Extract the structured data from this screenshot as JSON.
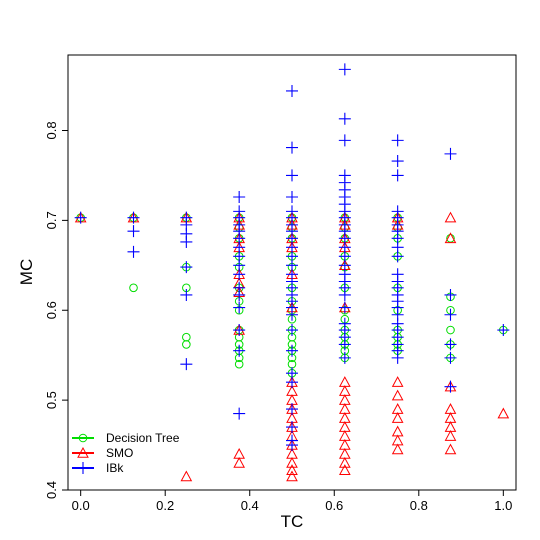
{
  "chart_data": {
    "type": "scatter",
    "title": "",
    "xlabel": "TC",
    "ylabel": "MC",
    "xlim": [
      -0.03,
      1.03
    ],
    "ylim": [
      0.4,
      0.884
    ],
    "xticks": [
      0.0,
      0.2,
      0.4,
      0.6,
      0.8,
      1.0
    ],
    "xtick_labels": [
      "0.0",
      "0.2",
      "0.4",
      "0.6",
      "0.8",
      "1.0"
    ],
    "yticks": [
      0.4,
      0.5,
      0.6,
      0.7,
      0.8
    ],
    "ytick_labels": [
      "0.4",
      "0.5",
      "0.6",
      "0.7",
      "0.8"
    ],
    "grid": false,
    "legend_position": "bottom-left",
    "colors": {
      "Decision Tree": "#00dd00",
      "SMO": "#ff0000",
      "IBk": "#0000ff"
    },
    "series": [
      {
        "name": "Decision Tree",
        "marker": "circle",
        "points": [
          [
            0.0,
            0.703
          ],
          [
            0.125,
            0.703
          ],
          [
            0.125,
            0.625
          ],
          [
            0.25,
            0.703
          ],
          [
            0.25,
            0.648
          ],
          [
            0.25,
            0.625
          ],
          [
            0.25,
            0.57
          ],
          [
            0.25,
            0.562
          ],
          [
            0.375,
            0.703
          ],
          [
            0.375,
            0.692
          ],
          [
            0.375,
            0.68
          ],
          [
            0.375,
            0.66
          ],
          [
            0.375,
            0.648
          ],
          [
            0.375,
            0.625
          ],
          [
            0.375,
            0.61
          ],
          [
            0.375,
            0.6
          ],
          [
            0.375,
            0.578
          ],
          [
            0.375,
            0.57
          ],
          [
            0.375,
            0.562
          ],
          [
            0.375,
            0.555
          ],
          [
            0.375,
            0.547
          ],
          [
            0.375,
            0.54
          ],
          [
            0.5,
            0.703
          ],
          [
            0.5,
            0.692
          ],
          [
            0.5,
            0.68
          ],
          [
            0.5,
            0.66
          ],
          [
            0.5,
            0.648
          ],
          [
            0.5,
            0.625
          ],
          [
            0.5,
            0.61
          ],
          [
            0.5,
            0.6
          ],
          [
            0.5,
            0.59
          ],
          [
            0.5,
            0.578
          ],
          [
            0.5,
            0.57
          ],
          [
            0.5,
            0.562
          ],
          [
            0.5,
            0.555
          ],
          [
            0.5,
            0.547
          ],
          [
            0.5,
            0.54
          ],
          [
            0.5,
            0.53
          ],
          [
            0.625,
            0.703
          ],
          [
            0.625,
            0.692
          ],
          [
            0.625,
            0.68
          ],
          [
            0.625,
            0.66
          ],
          [
            0.625,
            0.648
          ],
          [
            0.625,
            0.625
          ],
          [
            0.625,
            0.6
          ],
          [
            0.625,
            0.59
          ],
          [
            0.625,
            0.578
          ],
          [
            0.625,
            0.57
          ],
          [
            0.625,
            0.562
          ],
          [
            0.625,
            0.555
          ],
          [
            0.625,
            0.547
          ],
          [
            0.75,
            0.703
          ],
          [
            0.75,
            0.692
          ],
          [
            0.75,
            0.68
          ],
          [
            0.75,
            0.66
          ],
          [
            0.75,
            0.625
          ],
          [
            0.75,
            0.6
          ],
          [
            0.75,
            0.578
          ],
          [
            0.75,
            0.57
          ],
          [
            0.75,
            0.562
          ],
          [
            0.75,
            0.555
          ],
          [
            0.875,
            0.68
          ],
          [
            0.875,
            0.615
          ],
          [
            0.875,
            0.6
          ],
          [
            0.875,
            0.578
          ],
          [
            0.875,
            0.562
          ],
          [
            0.875,
            0.547
          ],
          [
            1.0,
            0.578
          ]
        ]
      },
      {
        "name": "SMO",
        "marker": "triangle",
        "points": [
          [
            0.0,
            0.703
          ],
          [
            0.125,
            0.703
          ],
          [
            0.25,
            0.703
          ],
          [
            0.25,
            0.415
          ],
          [
            0.375,
            0.703
          ],
          [
            0.375,
            0.695
          ],
          [
            0.375,
            0.68
          ],
          [
            0.375,
            0.67
          ],
          [
            0.375,
            0.64
          ],
          [
            0.375,
            0.63
          ],
          [
            0.375,
            0.62
          ],
          [
            0.375,
            0.578
          ],
          [
            0.375,
            0.44
          ],
          [
            0.375,
            0.43
          ],
          [
            0.5,
            0.703
          ],
          [
            0.5,
            0.695
          ],
          [
            0.5,
            0.68
          ],
          [
            0.5,
            0.67
          ],
          [
            0.5,
            0.64
          ],
          [
            0.5,
            0.603
          ],
          [
            0.5,
            0.52
          ],
          [
            0.5,
            0.51
          ],
          [
            0.5,
            0.5
          ],
          [
            0.5,
            0.49
          ],
          [
            0.5,
            0.48
          ],
          [
            0.5,
            0.47
          ],
          [
            0.5,
            0.46
          ],
          [
            0.5,
            0.45
          ],
          [
            0.5,
            0.44
          ],
          [
            0.5,
            0.43
          ],
          [
            0.5,
            0.422
          ],
          [
            0.5,
            0.415
          ],
          [
            0.625,
            0.703
          ],
          [
            0.625,
            0.695
          ],
          [
            0.625,
            0.68
          ],
          [
            0.625,
            0.67
          ],
          [
            0.625,
            0.65
          ],
          [
            0.625,
            0.603
          ],
          [
            0.625,
            0.52
          ],
          [
            0.625,
            0.51
          ],
          [
            0.625,
            0.5
          ],
          [
            0.625,
            0.49
          ],
          [
            0.625,
            0.48
          ],
          [
            0.625,
            0.47
          ],
          [
            0.625,
            0.46
          ],
          [
            0.625,
            0.45
          ],
          [
            0.625,
            0.44
          ],
          [
            0.625,
            0.43
          ],
          [
            0.625,
            0.422
          ],
          [
            0.75,
            0.703
          ],
          [
            0.75,
            0.695
          ],
          [
            0.75,
            0.52
          ],
          [
            0.75,
            0.505
          ],
          [
            0.75,
            0.49
          ],
          [
            0.75,
            0.48
          ],
          [
            0.75,
            0.465
          ],
          [
            0.75,
            0.455
          ],
          [
            0.75,
            0.445
          ],
          [
            0.875,
            0.703
          ],
          [
            0.875,
            0.68
          ],
          [
            0.875,
            0.515
          ],
          [
            0.875,
            0.49
          ],
          [
            0.875,
            0.48
          ],
          [
            0.875,
            0.47
          ],
          [
            0.875,
            0.46
          ],
          [
            0.875,
            0.445
          ],
          [
            1.0,
            0.485
          ]
        ]
      },
      {
        "name": "IBk",
        "marker": "plus",
        "points": [
          [
            0.0,
            0.703
          ],
          [
            0.125,
            0.703
          ],
          [
            0.125,
            0.688
          ],
          [
            0.125,
            0.665
          ],
          [
            0.25,
            0.703
          ],
          [
            0.25,
            0.695
          ],
          [
            0.25,
            0.685
          ],
          [
            0.25,
            0.676
          ],
          [
            0.25,
            0.648
          ],
          [
            0.25,
            0.617
          ],
          [
            0.25,
            0.54
          ],
          [
            0.375,
            0.726
          ],
          [
            0.375,
            0.71
          ],
          [
            0.375,
            0.703
          ],
          [
            0.375,
            0.695
          ],
          [
            0.375,
            0.688
          ],
          [
            0.375,
            0.68
          ],
          [
            0.375,
            0.67
          ],
          [
            0.375,
            0.66
          ],
          [
            0.375,
            0.65
          ],
          [
            0.375,
            0.64
          ],
          [
            0.375,
            0.625
          ],
          [
            0.375,
            0.617
          ],
          [
            0.375,
            0.603
          ],
          [
            0.375,
            0.578
          ],
          [
            0.375,
            0.555
          ],
          [
            0.375,
            0.485
          ],
          [
            0.5,
            0.844
          ],
          [
            0.5,
            0.781
          ],
          [
            0.5,
            0.75
          ],
          [
            0.5,
            0.726
          ],
          [
            0.5,
            0.71
          ],
          [
            0.5,
            0.703
          ],
          [
            0.5,
            0.695
          ],
          [
            0.5,
            0.688
          ],
          [
            0.5,
            0.68
          ],
          [
            0.5,
            0.67
          ],
          [
            0.5,
            0.66
          ],
          [
            0.5,
            0.65
          ],
          [
            0.5,
            0.64
          ],
          [
            0.5,
            0.632
          ],
          [
            0.5,
            0.625
          ],
          [
            0.5,
            0.617
          ],
          [
            0.5,
            0.61
          ],
          [
            0.5,
            0.603
          ],
          [
            0.5,
            0.595
          ],
          [
            0.5,
            0.578
          ],
          [
            0.5,
            0.555
          ],
          [
            0.5,
            0.53
          ],
          [
            0.5,
            0.52
          ],
          [
            0.5,
            0.49
          ],
          [
            0.5,
            0.47
          ],
          [
            0.5,
            0.455
          ],
          [
            0.5,
            0.45
          ],
          [
            0.625,
            0.868
          ],
          [
            0.625,
            0.813
          ],
          [
            0.625,
            0.789
          ],
          [
            0.625,
            0.75
          ],
          [
            0.625,
            0.742
          ],
          [
            0.625,
            0.734
          ],
          [
            0.625,
            0.726
          ],
          [
            0.625,
            0.718
          ],
          [
            0.625,
            0.71
          ],
          [
            0.625,
            0.703
          ],
          [
            0.625,
            0.695
          ],
          [
            0.625,
            0.688
          ],
          [
            0.625,
            0.68
          ],
          [
            0.625,
            0.67
          ],
          [
            0.625,
            0.66
          ],
          [
            0.625,
            0.65
          ],
          [
            0.625,
            0.64
          ],
          [
            0.625,
            0.632
          ],
          [
            0.625,
            0.625
          ],
          [
            0.625,
            0.617
          ],
          [
            0.625,
            0.603
          ],
          [
            0.625,
            0.585
          ],
          [
            0.625,
            0.578
          ],
          [
            0.625,
            0.57
          ],
          [
            0.625,
            0.562
          ],
          [
            0.625,
            0.547
          ],
          [
            0.75,
            0.789
          ],
          [
            0.75,
            0.766
          ],
          [
            0.75,
            0.75
          ],
          [
            0.75,
            0.71
          ],
          [
            0.75,
            0.703
          ],
          [
            0.75,
            0.695
          ],
          [
            0.75,
            0.688
          ],
          [
            0.75,
            0.68
          ],
          [
            0.75,
            0.67
          ],
          [
            0.75,
            0.66
          ],
          [
            0.75,
            0.64
          ],
          [
            0.75,
            0.632
          ],
          [
            0.75,
            0.625
          ],
          [
            0.75,
            0.617
          ],
          [
            0.75,
            0.61
          ],
          [
            0.75,
            0.603
          ],
          [
            0.75,
            0.595
          ],
          [
            0.75,
            0.585
          ],
          [
            0.75,
            0.578
          ],
          [
            0.75,
            0.57
          ],
          [
            0.75,
            0.562
          ],
          [
            0.75,
            0.555
          ],
          [
            0.75,
            0.547
          ],
          [
            0.875,
            0.774
          ],
          [
            0.875,
            0.617
          ],
          [
            0.875,
            0.595
          ],
          [
            0.875,
            0.562
          ],
          [
            0.875,
            0.547
          ],
          [
            0.875,
            0.515
          ],
          [
            1.0,
            0.578
          ]
        ]
      }
    ]
  }
}
